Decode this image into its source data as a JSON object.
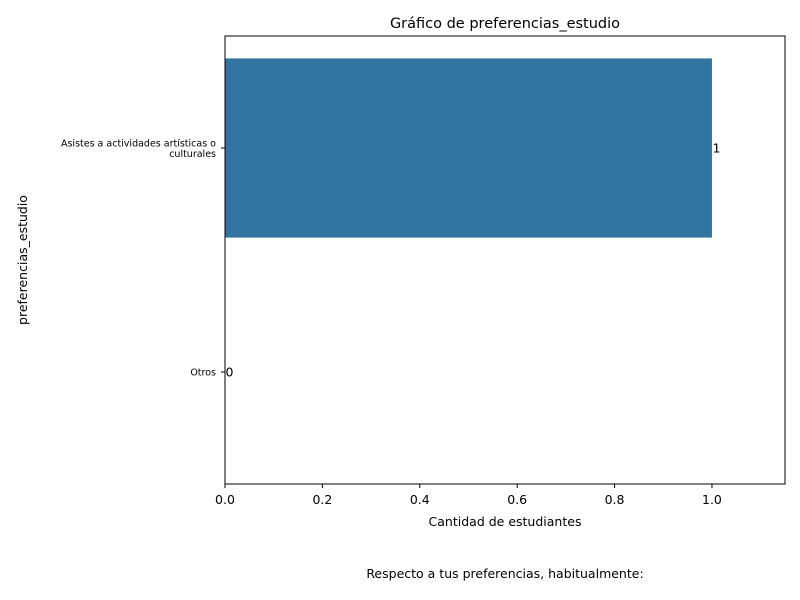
{
  "chart_data": {
    "type": "bar",
    "orientation": "horizontal",
    "title": "Gráfico de preferencias_estudio",
    "xlabel": "Cantidad de estudiantes",
    "ylabel": "preferencias_estudio",
    "categories": [
      [
        "Asistes a actividades artísticas o",
        "culturales"
      ],
      [
        "Otros"
      ]
    ],
    "values": [
      1,
      0
    ],
    "data_labels": [
      "1",
      "0"
    ],
    "xlim": [
      0,
      1.15
    ],
    "xticks": [
      0.0,
      0.2,
      0.4,
      0.6,
      0.8,
      1.0
    ],
    "xtick_labels": [
      "0.0",
      "0.2",
      "0.4",
      "0.6",
      "0.8",
      "1.0"
    ],
    "bar_color": "#3274a1",
    "grid": false,
    "caption": "Respecto a tus preferencias, habitualmente:"
  }
}
